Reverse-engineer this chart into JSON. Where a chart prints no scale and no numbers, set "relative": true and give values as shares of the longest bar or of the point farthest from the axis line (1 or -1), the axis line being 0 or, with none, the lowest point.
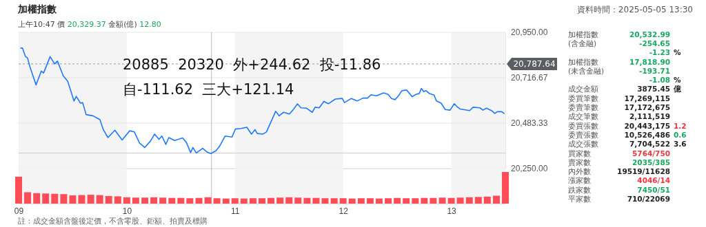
{
  "chart_data": [
    {
      "type": "line",
      "title": "加權指數",
      "subtitle": "上午10:47  價 20,329.37  金額(億) 12.80",
      "annotations": [
        "資料時間：2025-05-05 13:30",
        "20885  20320  外+244.62  投-11.86",
        "自-111.62  三大+121.14"
      ],
      "x": [
        9.02,
        9.036,
        9.062,
        9.083,
        9.104,
        9.161,
        9.21,
        9.231,
        9.291,
        9.333,
        9.359,
        9.412,
        9.454,
        9.512,
        9.533,
        9.571,
        9.592,
        9.624,
        9.688,
        9.752,
        9.783,
        9.826,
        9.89,
        9.957,
        10.027,
        10.07,
        10.119,
        10.166,
        10.219,
        10.257,
        10.298,
        10.325,
        10.361,
        10.389,
        10.441,
        10.516,
        10.552,
        10.59,
        10.611,
        10.643,
        10.701,
        10.739,
        10.777,
        10.824,
        10.855,
        10.909,
        10.973,
        11.004,
        11.057,
        11.11,
        11.153,
        11.185,
        11.206,
        11.259,
        11.291,
        11.344,
        11.376,
        11.408,
        11.45,
        11.503,
        11.535,
        11.578,
        11.61,
        11.662,
        11.715,
        11.741,
        11.779,
        11.822,
        11.864,
        11.928,
        11.992,
        12.013,
        12.076,
        12.13,
        12.183,
        12.225,
        12.257,
        12.31,
        12.374,
        12.416,
        12.448,
        12.48,
        12.512,
        12.543,
        12.586,
        12.639,
        12.671,
        12.703,
        12.724,
        12.745,
        12.767,
        12.799,
        12.841,
        12.863,
        12.906,
        12.944,
        12.989,
        13.028,
        13.053,
        13.081,
        13.17,
        13.202,
        13.265,
        13.293,
        13.325,
        13.371,
        13.403,
        13.425,
        13.467,
        13.488
      ],
      "series": [
        {
          "color": "#1e78ff",
          "values": [
            20869,
            20869,
            20827,
            20818,
            20774,
            20680,
            20751,
            20741,
            20825,
            20788,
            20802,
            20727,
            20698,
            20597,
            20621,
            20586,
            20589,
            20527,
            20521,
            20501,
            20450,
            20409,
            20447,
            20397,
            20444,
            20438,
            20380,
            20358,
            20391,
            20427,
            20400,
            20417,
            20374,
            20409,
            20394,
            20407,
            20383,
            20332,
            20358,
            20330,
            20354,
            20336,
            20327,
            20341,
            20362,
            20417,
            20412,
            20453,
            20456,
            20462,
            20427,
            20450,
            20430,
            20427,
            20438,
            20503,
            20544,
            20521,
            20539,
            20530,
            20550,
            20582,
            20562,
            20560,
            20539,
            20565,
            20562,
            20595,
            20583,
            20607,
            20610,
            20589,
            20610,
            20597,
            20612,
            20612,
            20629,
            20624,
            20639,
            20631,
            20610,
            20604,
            20624,
            20650,
            20654,
            20619,
            20631,
            20635,
            20662,
            20645,
            20650,
            20635,
            20627,
            20597,
            20586,
            20553,
            20550,
            20583,
            20568,
            20556,
            20548,
            20565,
            20562,
            20550,
            20560,
            20548,
            20533,
            20542,
            20542,
            20533
          ]
        }
      ],
      "xlim": [
        9,
        13.5
      ],
      "ylim": [
        20250,
        20950
      ],
      "yticks": [
        {
          "value": 20250,
          "label": "20,250.00"
        },
        {
          "value": 20483.33,
          "label": "20,483.33"
        },
        {
          "value": 20716.67,
          "label": "20,716.67"
        },
        {
          "value": 20950,
          "label": "20,950.00"
        }
      ],
      "tick_labels": "y",
      "grid": "y",
      "marker": "none",
      "line_style": "solid",
      "ref_lines": [
        {
          "axis": "y",
          "value": 20787.64,
          "label": "20,787.64",
          "line_style": "dashed",
          "color": "#999999"
        },
        {
          "axis": "x",
          "value": 10.783,
          "color": "#bbbbbb"
        },
        {
          "axis": "y",
          "value": 20329.37,
          "color": "#cccccc"
        }
      ],
      "bands": [
        {
          "axis": "x",
          "from": 9,
          "to": 10,
          "color": "#f4f4f4"
        },
        {
          "axis": "x",
          "from": 11,
          "to": 12,
          "color": "#f4f4f4"
        },
        {
          "axis": "x",
          "from": 13,
          "to": 13.5,
          "color": "#f4f4f4"
        }
      ]
    },
    {
      "type": "bar",
      "relative": true,
      "color": "#ff4d57",
      "x": [
        9,
        9.083,
        9.167,
        9.25,
        9.333,
        9.417,
        9.5,
        9.583,
        9.667,
        9.75,
        9.833,
        9.917,
        10,
        10.083,
        10.167,
        10.25,
        10.333,
        10.417,
        10.5,
        10.583,
        10.667,
        10.75,
        10.833,
        10.917,
        11,
        11.083,
        11.167,
        11.25,
        11.333,
        11.417,
        11.5,
        11.583,
        11.667,
        11.75,
        11.833,
        11.917,
        12,
        12.083,
        12.167,
        12.25,
        12.333,
        12.417,
        12.5,
        12.583,
        12.667,
        12.75,
        12.833,
        12.917,
        13,
        13.083,
        13.167,
        13.25,
        13.333,
        13.417,
        13.5
      ],
      "values": [
        0.85,
        0.36,
        0.33,
        0.32,
        0.31,
        0.3,
        0.26,
        0.27,
        0.28,
        0.27,
        0.24,
        0.23,
        0.2,
        0.19,
        0.19,
        0.2,
        0.19,
        0.18,
        0.18,
        0.17,
        0.18,
        0.2,
        0.17,
        0.16,
        0.17,
        0.16,
        0.17,
        0.17,
        0.18,
        0.19,
        0.2,
        0.19,
        0.18,
        0.18,
        0.17,
        0.17,
        0.17,
        0.16,
        0.17,
        0.17,
        0.16,
        0.17,
        0.18,
        0.17,
        0.17,
        0.18,
        0.18,
        0.19,
        0.18,
        0.19,
        0.2,
        0.21,
        0.22,
        0.25,
        1
      ],
      "xlim": [
        9,
        13.5
      ],
      "xticks": [
        {
          "value": 9,
          "label": "09"
        },
        {
          "value": 10,
          "label": "10"
        },
        {
          "value": 11,
          "label": "11"
        },
        {
          "value": 12,
          "label": "12"
        },
        {
          "value": 13,
          "label": "13"
        }
      ],
      "tick_labels": "x",
      "bands": [
        {
          "axis": "x",
          "from": 9,
          "to": 10,
          "color": "#f4f4f4"
        },
        {
          "axis": "x",
          "from": 11,
          "to": 12,
          "color": "#f4f4f4"
        },
        {
          "axis": "x",
          "from": 13,
          "to": 13.5,
          "color": "#f4f4f4"
        }
      ],
      "annotations": [
        "註：成交金額含盤後定價，不含零股、鉅額、拍賣及標購"
      ]
    },
    {
      "type": "other",
      "annotations": [
        "加權指數",
        "20,532.99",
        "(含金融)",
        "-254.65",
        "-1.23",
        "%",
        "加權指數",
        "17,818.90",
        "(未含金融)",
        "-193.71",
        "-1.08",
        "%",
        "成交金額",
        "3875.45",
        "億",
        "委買筆數",
        "17,269,115",
        "委賣筆數",
        "17,172,675",
        "成交筆數",
        "2,111,519",
        "委買張數",
        "20,443,175",
        "1.2",
        "委賣張數",
        "10,526,486",
        "0.6",
        "成交張數",
        "7,704,522",
        "3.6",
        "買家數",
        "5764/750",
        "賣家數",
        "2035/385",
        "內外數",
        "19519/11628",
        "漲家數",
        "4046/14",
        "跌家數",
        "7450/51",
        "平家數",
        "710/22069"
      ]
    }
  ]
}
